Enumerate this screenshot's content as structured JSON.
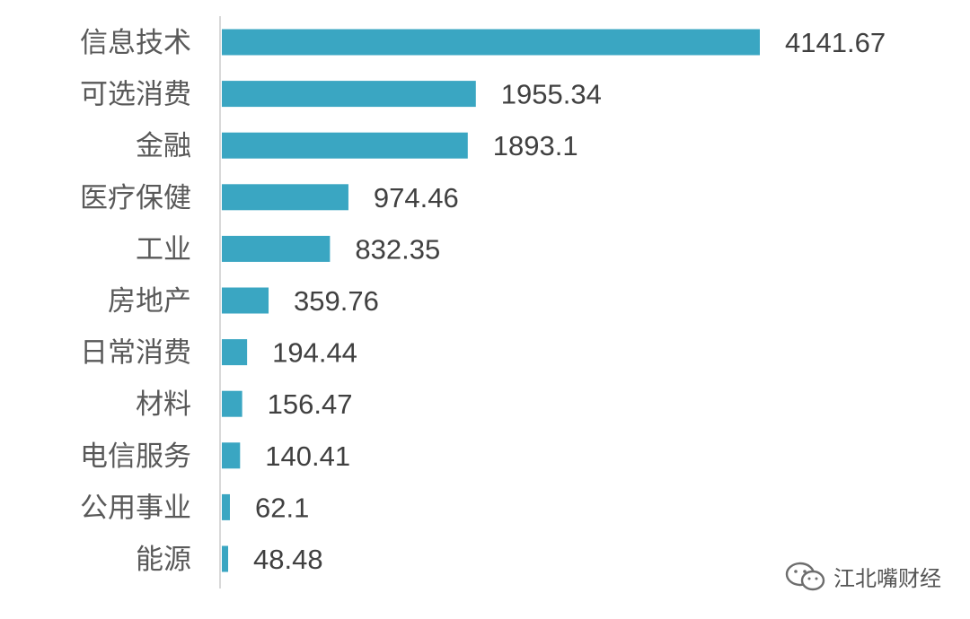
{
  "chart_data": {
    "type": "bar",
    "orientation": "horizontal",
    "categories": [
      "信息技术",
      "可选消费",
      "金融",
      "医疗保健",
      "工业",
      "房地产",
      "日常消费",
      "材料",
      "电信服务",
      "公用事业",
      "能源"
    ],
    "values": [
      4141.67,
      1955.34,
      1893.1,
      974.46,
      832.35,
      359.76,
      194.44,
      156.47,
      140.41,
      62.1,
      48.48
    ],
    "value_labels": [
      "4141.67",
      "1955.34",
      "1893.1",
      "974.46",
      "832.35",
      "359.76",
      "194.44",
      "156.47",
      "140.41",
      "62.1",
      "48.48"
    ],
    "bar_color": "#3aa6c2",
    "xlim": [
      0,
      4200
    ],
    "grid": false,
    "legend": "none"
  },
  "watermark": {
    "text": "江北嘴财经",
    "icon": "wechat-icon"
  }
}
